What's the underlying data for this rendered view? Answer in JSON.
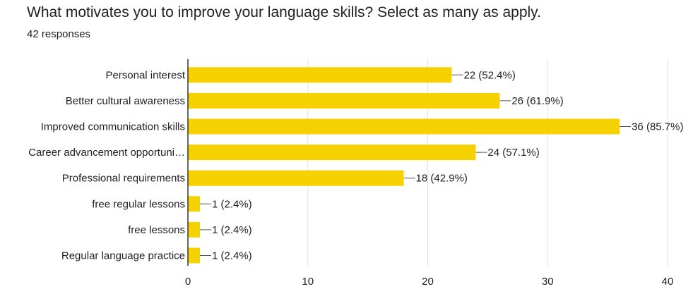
{
  "question": {
    "title": "What motivates you to improve your language skills? Select as many as apply.",
    "responses": "42 responses"
  },
  "chart_data": {
    "type": "bar",
    "orientation": "horizontal",
    "categories": [
      "Personal interest",
      "Better cultural awareness",
      "Improved communication skills",
      "Career advancement opportuni…",
      "Professional requirements",
      "free regular lessons",
      "free lessons",
      "Regular language practice"
    ],
    "values": [
      22,
      26,
      36,
      24,
      18,
      1,
      1,
      1
    ],
    "value_labels": [
      "22 (52.4%)",
      "26 (61.9%)",
      "36 (85.7%)",
      "24 (57.1%)",
      "18 (42.9%)",
      "1 (2.4%)",
      "1 (2.4%)",
      "1 (2.4%)"
    ],
    "xlim": [
      0,
      40
    ],
    "xticks": [
      0,
      10,
      20,
      30,
      40
    ],
    "grid": true,
    "bar_color": "#f6d100",
    "grid_color": "#e0e0e0",
    "axis_color": "#333333"
  }
}
